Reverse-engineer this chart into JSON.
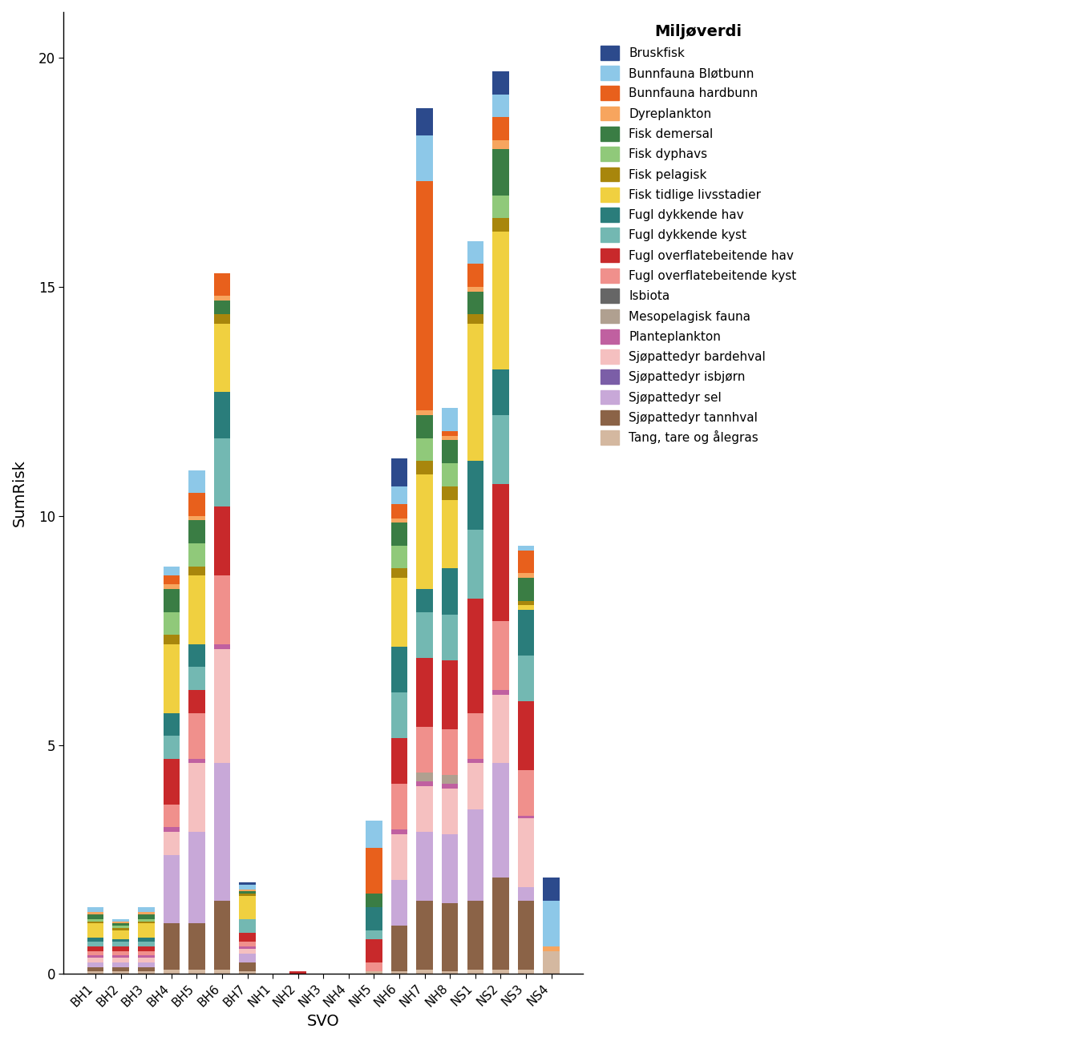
{
  "categories": [
    "BH1",
    "BH2",
    "BH3",
    "BH4",
    "BH5",
    "BH6",
    "BH7",
    "NH1",
    "NH2",
    "NH3",
    "NH4",
    "NH5",
    "NH6",
    "NH7",
    "NH8",
    "NS1",
    "NS2",
    "NS3",
    "NS4"
  ],
  "legend_title": "Miljøverdi",
  "xlabel": "SVO",
  "ylabel": "SumRisk",
  "ylim": [
    0,
    21
  ],
  "yticks": [
    0,
    5,
    10,
    15,
    20
  ],
  "series": [
    {
      "name": "Tang, tare og ålegras",
      "color": "#D4B8A0",
      "values": [
        0.05,
        0.05,
        0.05,
        0.1,
        0.1,
        0.1,
        0.05,
        0.0,
        0.0,
        0.0,
        0.0,
        0.05,
        0.05,
        0.1,
        0.05,
        0.1,
        0.1,
        0.1,
        0.5
      ]
    },
    {
      "name": "Sjøpattedyr tannhval",
      "color": "#8B6347",
      "values": [
        0.1,
        0.1,
        0.1,
        1.0,
        1.0,
        1.5,
        0.2,
        0.0,
        0.0,
        0.0,
        0.0,
        0.0,
        1.0,
        1.5,
        1.5,
        1.5,
        2.0,
        1.5,
        0.0
      ]
    },
    {
      "name": "Sjøpattedyr sel",
      "color": "#C8A8D8",
      "values": [
        0.1,
        0.1,
        0.1,
        1.5,
        2.0,
        3.0,
        0.2,
        0.0,
        0.0,
        0.0,
        0.0,
        0.0,
        1.0,
        1.5,
        1.5,
        2.0,
        2.5,
        0.3,
        0.0
      ]
    },
    {
      "name": "Sjøpattedyr isbjørn",
      "color": "#7B5EA7",
      "values": [
        0.0,
        0.0,
        0.0,
        0.0,
        0.0,
        0.0,
        0.0,
        0.0,
        0.0,
        0.0,
        0.0,
        0.0,
        0.0,
        0.0,
        0.0,
        0.0,
        0.0,
        0.0,
        0.0
      ]
    },
    {
      "name": "Sjøpattedyr bardehval",
      "color": "#F5C0C0",
      "values": [
        0.1,
        0.1,
        0.1,
        0.5,
        1.5,
        2.5,
        0.1,
        0.0,
        0.0,
        0.0,
        0.0,
        0.0,
        1.0,
        1.0,
        1.0,
        1.0,
        1.5,
        1.5,
        0.0
      ]
    },
    {
      "name": "Planteplankton",
      "color": "#C060A0",
      "values": [
        0.05,
        0.05,
        0.05,
        0.1,
        0.1,
        0.1,
        0.05,
        0.0,
        0.0,
        0.0,
        0.0,
        0.0,
        0.1,
        0.1,
        0.1,
        0.1,
        0.1,
        0.05,
        0.0
      ]
    },
    {
      "name": "Mesopelagisk fauna",
      "color": "#B0A090",
      "values": [
        0.0,
        0.0,
        0.0,
        0.0,
        0.0,
        0.0,
        0.0,
        0.0,
        0.0,
        0.0,
        0.0,
        0.0,
        0.0,
        0.2,
        0.2,
        0.0,
        0.0,
        0.0,
        0.0
      ]
    },
    {
      "name": "Isbiota",
      "color": "#666666",
      "values": [
        0.0,
        0.0,
        0.0,
        0.0,
        0.0,
        0.0,
        0.0,
        0.0,
        0.0,
        0.0,
        0.0,
        0.0,
        0.0,
        0.0,
        0.0,
        0.0,
        0.0,
        0.0,
        0.0
      ]
    },
    {
      "name": "Fugl overflatebeitende kyst",
      "color": "#F0908C",
      "values": [
        0.1,
        0.1,
        0.1,
        0.5,
        1.0,
        1.5,
        0.1,
        0.0,
        0.0,
        0.0,
        0.0,
        0.2,
        1.0,
        1.0,
        1.0,
        1.0,
        1.5,
        1.0,
        0.0
      ]
    },
    {
      "name": "Fugl overflatebeitende hav",
      "color": "#C8292B",
      "values": [
        0.1,
        0.1,
        0.1,
        1.0,
        0.5,
        1.5,
        0.2,
        0.0,
        0.05,
        0.0,
        0.0,
        0.5,
        1.0,
        1.5,
        1.5,
        2.5,
        3.0,
        1.5,
        0.0
      ]
    },
    {
      "name": "Fugl dykkende kyst",
      "color": "#73B8B2",
      "values": [
        0.1,
        0.1,
        0.1,
        0.5,
        0.5,
        1.5,
        0.3,
        0.0,
        0.0,
        0.0,
        0.0,
        0.2,
        1.0,
        1.0,
        1.0,
        1.5,
        1.5,
        1.0,
        0.0
      ]
    },
    {
      "name": "Fugl dykkende hav",
      "color": "#2A7D7B",
      "values": [
        0.1,
        0.05,
        0.1,
        0.5,
        0.5,
        1.0,
        0.0,
        0.0,
        0.0,
        0.0,
        0.0,
        0.5,
        1.0,
        0.5,
        1.0,
        1.5,
        1.0,
        1.0,
        0.0
      ]
    },
    {
      "name": "Fisk tidlige livsstadier",
      "color": "#F0D040",
      "values": [
        0.3,
        0.2,
        0.3,
        1.5,
        1.5,
        1.5,
        0.5,
        0.0,
        0.0,
        0.0,
        0.0,
        0.0,
        1.5,
        2.5,
        1.5,
        3.0,
        3.0,
        0.1,
        0.0
      ]
    },
    {
      "name": "Fisk pelagisk",
      "color": "#A8860C",
      "values": [
        0.05,
        0.05,
        0.05,
        0.2,
        0.2,
        0.2,
        0.05,
        0.0,
        0.0,
        0.0,
        0.0,
        0.0,
        0.2,
        0.3,
        0.3,
        0.2,
        0.3,
        0.1,
        0.0
      ]
    },
    {
      "name": "Fisk dyphavs",
      "color": "#90C97A",
      "values": [
        0.05,
        0.05,
        0.05,
        0.5,
        0.5,
        0.0,
        0.0,
        0.0,
        0.0,
        0.0,
        0.0,
        0.0,
        0.5,
        0.5,
        0.5,
        0.0,
        0.5,
        0.0,
        0.0
      ]
    },
    {
      "name": "Fisk demersal",
      "color": "#3A7D44",
      "values": [
        0.1,
        0.05,
        0.1,
        0.5,
        0.5,
        0.3,
        0.05,
        0.0,
        0.0,
        0.0,
        0.0,
        0.3,
        0.5,
        0.5,
        0.5,
        0.5,
        1.0,
        0.5,
        0.0
      ]
    },
    {
      "name": "Dyreplankton",
      "color": "#F7A55E",
      "values": [
        0.05,
        0.05,
        0.05,
        0.1,
        0.1,
        0.1,
        0.05,
        0.0,
        0.0,
        0.0,
        0.0,
        0.0,
        0.1,
        0.1,
        0.1,
        0.1,
        0.2,
        0.1,
        0.1
      ]
    },
    {
      "name": "Bunnfauna hardbunn",
      "color": "#E8601C",
      "values": [
        0.0,
        0.0,
        0.0,
        0.2,
        0.5,
        0.5,
        0.0,
        0.0,
        0.0,
        0.0,
        0.0,
        1.0,
        0.3,
        5.0,
        0.1,
        0.5,
        0.5,
        0.5,
        0.0
      ]
    },
    {
      "name": "Bunnfauna Bløtbunn",
      "color": "#8DC8E8",
      "values": [
        0.1,
        0.05,
        0.1,
        0.2,
        0.5,
        0.0,
        0.1,
        0.0,
        0.0,
        0.0,
        0.0,
        0.6,
        0.4,
        1.0,
        0.5,
        0.5,
        0.5,
        0.1,
        1.0
      ]
    },
    {
      "name": "Bruskfisk",
      "color": "#2C4A8C",
      "values": [
        0.0,
        0.0,
        0.0,
        0.0,
        0.0,
        0.0,
        0.05,
        0.0,
        0.0,
        0.0,
        0.0,
        0.0,
        0.6,
        0.6,
        0.0,
        0.0,
        0.5,
        0.0,
        0.5
      ]
    }
  ],
  "legend_order": [
    "Bruskfisk",
    "Bunnfauna Bløtbunn",
    "Bunnfauna hardbunn",
    "Dyreplankton",
    "Fisk demersal",
    "Fisk dyphavs",
    "Fisk pelagisk",
    "Fisk tidlige livsstadier",
    "Fugl dykkende hav",
    "Fugl dykkende kyst",
    "Fugl overflatebeitende hav",
    "Fugl overflatebeitende kyst",
    "Isbiota",
    "Mesopelagisk fauna",
    "Planteplankton",
    "Sjøpattedyr bardehval",
    "Sjøpattedyr isbjørn",
    "Sjøpattedyr sel",
    "Sjøpattedyr tannhval",
    "Tang, tare og ålegras"
  ]
}
